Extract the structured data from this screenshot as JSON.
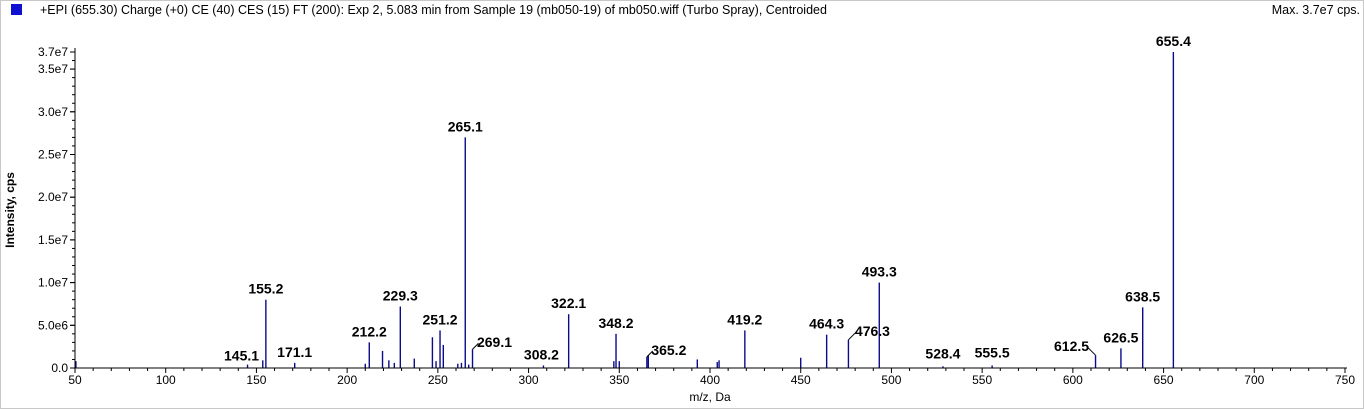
{
  "header": {
    "title": "+EPI (655.30) Charge (+0) CE (40) CES (15) FT (200): Exp 2, 5.083 min from Sample 19 (mb050-19) of mb050.wiff (Turbo Spray), Centroided",
    "max_label": "Max. 3.7e7 cps.",
    "marker_color": "#1010d0"
  },
  "chart_data": {
    "type": "bar",
    "xlabel": "m/z, Da",
    "ylabel": "Intensity, cps",
    "xlim": [
      50,
      750
    ],
    "ylim": [
      0,
      37000000
    ],
    "xticks": [
      50,
      100,
      150,
      200,
      250,
      300,
      350,
      400,
      450,
      500,
      550,
      600,
      650,
      700,
      750
    ],
    "yticks": [
      {
        "value": 0,
        "label": "0.0"
      },
      {
        "value": 5000000,
        "label": "5.0e6"
      },
      {
        "value": 10000000,
        "label": "1.0e7"
      },
      {
        "value": 15000000,
        "label": "1.5e7"
      },
      {
        "value": 20000000,
        "label": "2.0e7"
      },
      {
        "value": 25000000,
        "label": "2.5e7"
      },
      {
        "value": 30000000,
        "label": "3.0e7"
      },
      {
        "value": 35000000,
        "label": "3.5e7"
      },
      {
        "value": 37000000,
        "label": "3.7e7"
      }
    ],
    "line_color": "#0b0b8a",
    "peaks": [
      {
        "mz": 50.5,
        "intensity": 800000
      },
      {
        "mz": 145.1,
        "intensity": 400000,
        "label": "145.1"
      },
      {
        "mz": 153.5,
        "intensity": 900000
      },
      {
        "mz": 155.2,
        "intensity": 8000000,
        "label": "155.2"
      },
      {
        "mz": 171.1,
        "intensity": 600000,
        "label": "171.1"
      },
      {
        "mz": 210.0,
        "intensity": 500000
      },
      {
        "mz": 212.2,
        "intensity": 3000000,
        "label": "212.2"
      },
      {
        "mz": 219.5,
        "intensity": 2000000
      },
      {
        "mz": 223.0,
        "intensity": 900000
      },
      {
        "mz": 226.0,
        "intensity": 600000
      },
      {
        "mz": 229.3,
        "intensity": 7200000,
        "label": "229.3"
      },
      {
        "mz": 237.0,
        "intensity": 1100000
      },
      {
        "mz": 247.0,
        "intensity": 3600000
      },
      {
        "mz": 249.0,
        "intensity": 800000
      },
      {
        "mz": 251.2,
        "intensity": 4400000,
        "label": "251.2"
      },
      {
        "mz": 253.0,
        "intensity": 2700000
      },
      {
        "mz": 261.0,
        "intensity": 500000
      },
      {
        "mz": 263.0,
        "intensity": 600000
      },
      {
        "mz": 265.1,
        "intensity": 27000000,
        "label": "265.1"
      },
      {
        "mz": 267.0,
        "intensity": 400000
      },
      {
        "mz": 269.1,
        "intensity": 2200000,
        "label": "269.1"
      },
      {
        "mz": 308.2,
        "intensity": 300000,
        "label": "308.2"
      },
      {
        "mz": 322.1,
        "intensity": 6300000,
        "label": "322.1"
      },
      {
        "mz": 347.0,
        "intensity": 800000
      },
      {
        "mz": 348.2,
        "intensity": 4000000,
        "label": "348.2"
      },
      {
        "mz": 350.0,
        "intensity": 800000
      },
      {
        "mz": 365.2,
        "intensity": 1300000,
        "label": "365.2"
      },
      {
        "mz": 366.0,
        "intensity": 1500000
      },
      {
        "mz": 393.0,
        "intensity": 1000000
      },
      {
        "mz": 404.0,
        "intensity": 700000
      },
      {
        "mz": 405.0,
        "intensity": 900000
      },
      {
        "mz": 419.2,
        "intensity": 4400000,
        "label": "419.2"
      },
      {
        "mz": 450.0,
        "intensity": 1200000
      },
      {
        "mz": 464.3,
        "intensity": 3900000,
        "label": "464.3"
      },
      {
        "mz": 476.3,
        "intensity": 3300000,
        "label": "476.3"
      },
      {
        "mz": 493.3,
        "intensity": 10000000,
        "label": "493.3"
      },
      {
        "mz": 528.4,
        "intensity": 200000,
        "label": "528.4"
      },
      {
        "mz": 555.5,
        "intensity": 300000,
        "label": "555.5"
      },
      {
        "mz": 612.5,
        "intensity": 1500000,
        "label": "612.5"
      },
      {
        "mz": 626.5,
        "intensity": 2300000,
        "label": "626.5"
      },
      {
        "mz": 638.5,
        "intensity": 7100000,
        "label": "638.5"
      },
      {
        "mz": 655.4,
        "intensity": 37000000,
        "label": "655.4"
      }
    ]
  }
}
